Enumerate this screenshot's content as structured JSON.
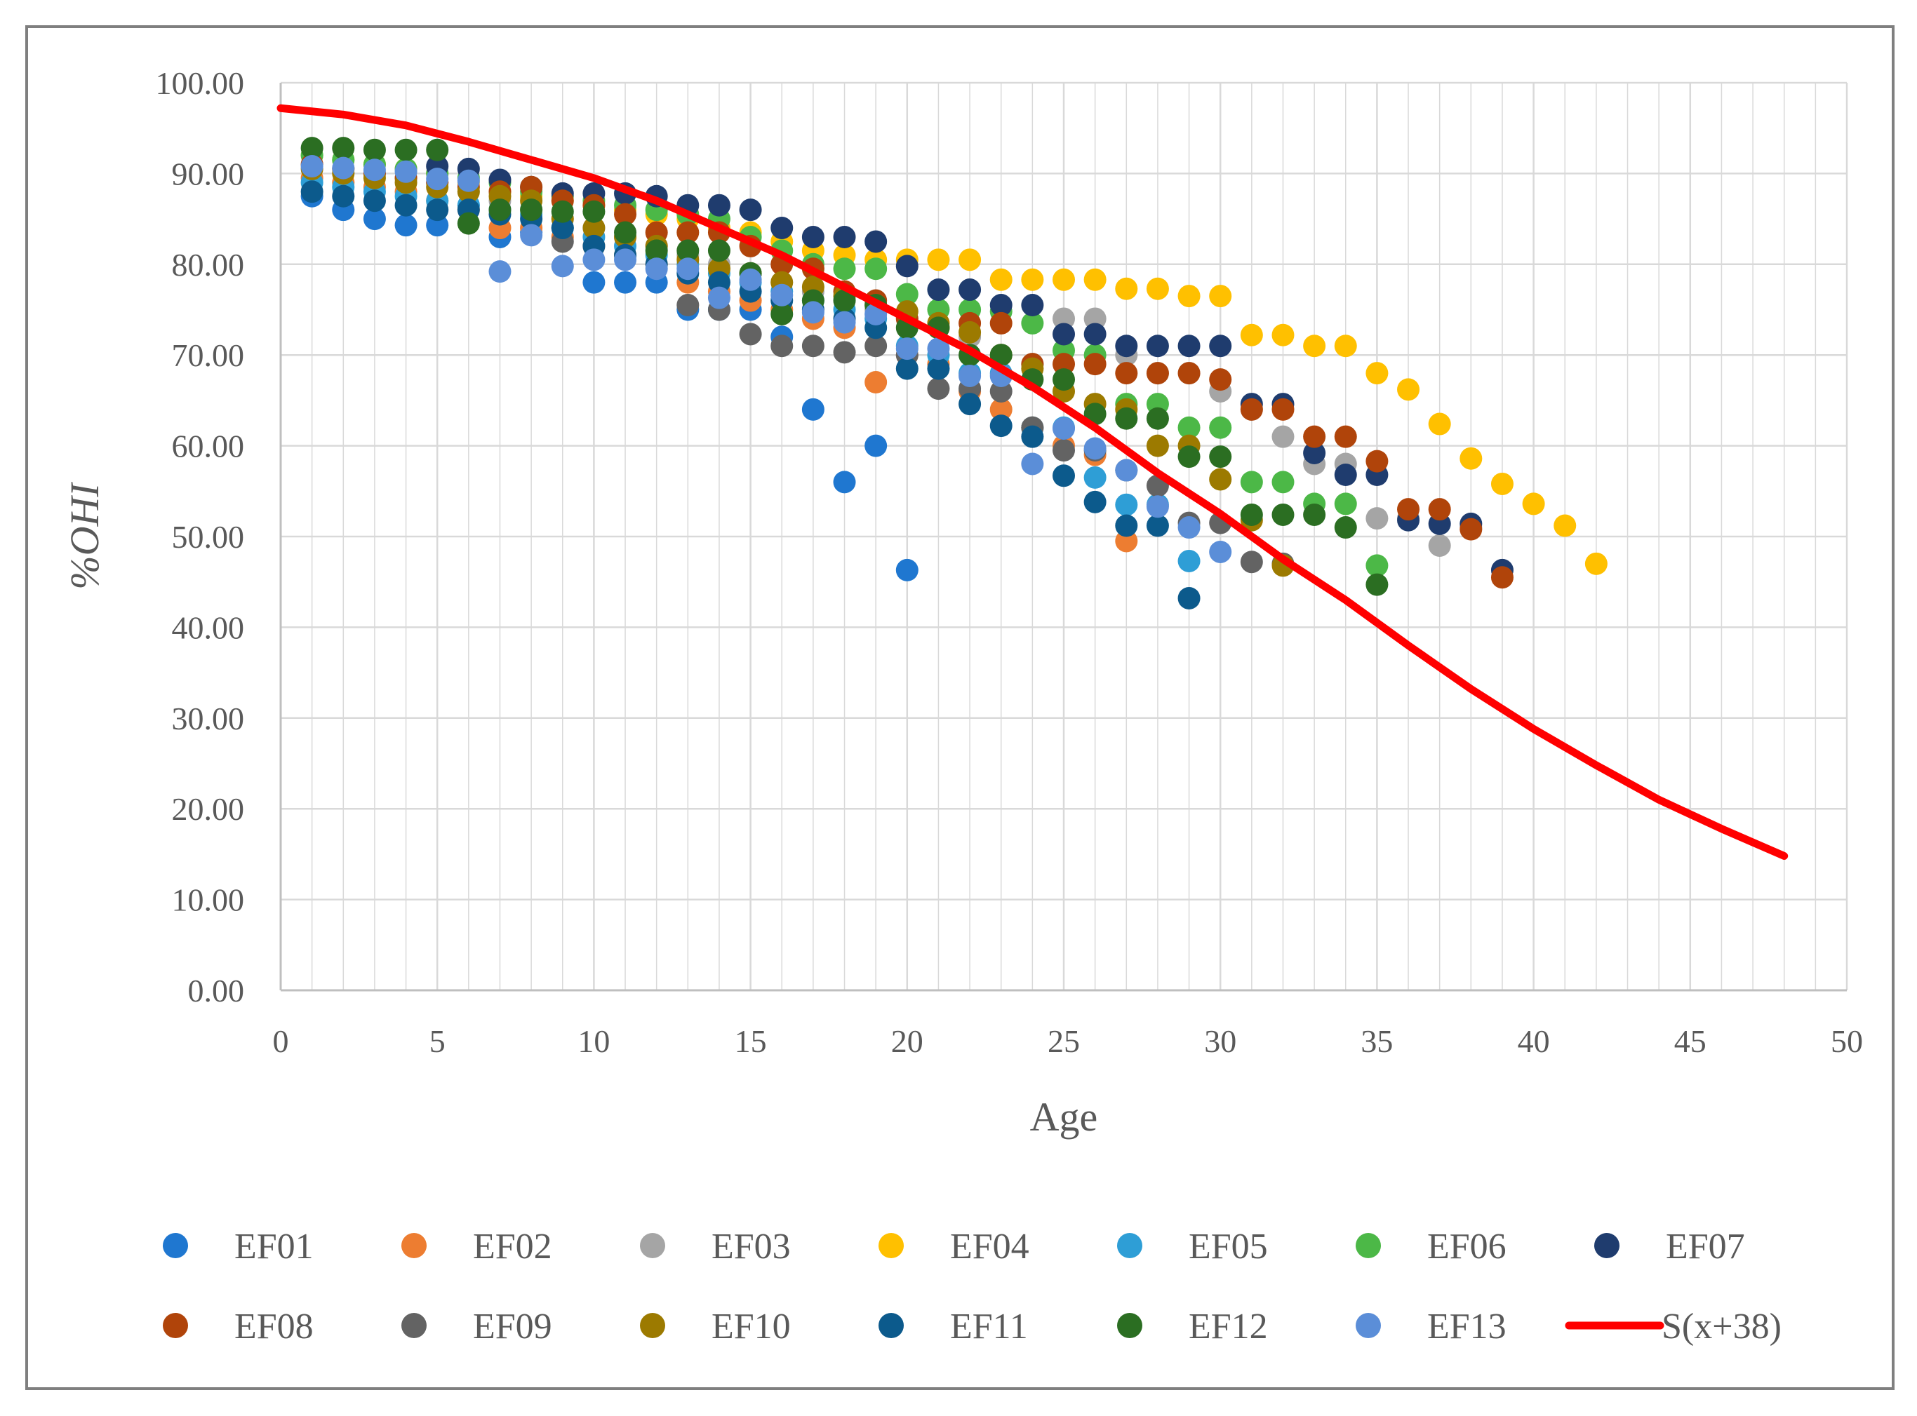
{
  "chart_data": {
    "type": "scatter",
    "title": "",
    "xlabel": "Age",
    "ylabel": "%OHI",
    "xlim": [
      0,
      50
    ],
    "ylim": [
      0,
      100
    ],
    "x_ticks": [
      "0",
      "5",
      "10",
      "15",
      "20",
      "25",
      "30",
      "35",
      "40",
      "45",
      "50"
    ],
    "y_ticks": [
      "0.00",
      "10.00",
      "20.00",
      "30.00",
      "40.00",
      "50.00",
      "60.00",
      "70.00",
      "80.00",
      "90.00",
      "100.00"
    ],
    "grid": true,
    "legend_position": "bottom",
    "series": [
      {
        "name": "EF01",
        "type": "scatter",
        "color": "#1f77d0",
        "x": [
          1,
          2,
          3,
          4,
          5,
          6,
          7,
          8,
          9,
          10,
          11,
          12,
          13,
          14,
          15,
          16,
          17,
          18,
          19,
          20
        ],
        "y": [
          87.5,
          86,
          85,
          84.3,
          84.3,
          86.5,
          83,
          83.5,
          84,
          78,
          78,
          78,
          75,
          75,
          75,
          72,
          64,
          56,
          60,
          46.3
        ]
      },
      {
        "name": "EF02",
        "type": "scatter",
        "color": "#ed7d31",
        "x": [
          1,
          2,
          3,
          4,
          5,
          6,
          7,
          8,
          9,
          10,
          11,
          12,
          13,
          14,
          15,
          16,
          17,
          18,
          19,
          20,
          21,
          22,
          23,
          24,
          25,
          26,
          27
        ],
        "y": [
          89.5,
          89,
          88.5,
          88,
          87,
          86,
          84,
          84,
          83,
          82,
          81,
          80,
          78,
          77,
          76,
          75,
          74,
          73,
          67,
          70,
          69,
          66,
          64,
          62,
          60,
          59,
          49.5
        ]
      },
      {
        "name": "EF03",
        "type": "scatter",
        "color": "#a5a5a5",
        "x": [
          1,
          2,
          3,
          4,
          5,
          6,
          7,
          8,
          9,
          10,
          11,
          12,
          13,
          14,
          15,
          16,
          17,
          18,
          19,
          20,
          21,
          22,
          23,
          24,
          25,
          26,
          27,
          28,
          29,
          30,
          31,
          32,
          33,
          34,
          35,
          36,
          37,
          38
        ],
        "y": [
          91,
          90.5,
          90,
          89.5,
          89,
          88,
          87,
          86,
          85,
          84,
          83,
          82,
          81,
          80,
          79,
          78,
          77,
          76,
          75,
          74,
          73,
          72,
          70,
          69,
          74,
          74,
          70,
          68,
          68,
          66,
          64,
          61,
          58,
          58,
          52,
          52,
          49,
          51
        ]
      },
      {
        "name": "EF04",
        "type": "scatter",
        "color": "#ffc000",
        "x": [
          1,
          2,
          3,
          4,
          5,
          6,
          7,
          8,
          9,
          10,
          11,
          12,
          13,
          14,
          15,
          16,
          17,
          18,
          19,
          20,
          21,
          22,
          23,
          24,
          25,
          26,
          27,
          28,
          29,
          30,
          31,
          32,
          33,
          34,
          35,
          36,
          37,
          38,
          39,
          40,
          41,
          42
        ],
        "y": [
          92,
          91.5,
          91,
          90.5,
          90,
          89,
          88,
          87.5,
          87,
          86.5,
          86,
          85.5,
          85,
          84,
          83.5,
          82.5,
          81.5,
          81,
          80.5,
          80.5,
          80.5,
          80.5,
          78.3,
          78.3,
          78.3,
          78.3,
          77.3,
          77.3,
          76.5,
          76.5,
          72.2,
          72.2,
          71,
          71,
          68,
          66.2,
          62.4,
          58.6,
          55.8,
          53.6,
          51.2,
          47
        ]
      },
      {
        "name": "EF05",
        "type": "scatter",
        "color": "#2e9ed6",
        "x": [
          1,
          2,
          3,
          4,
          5,
          6,
          7,
          8,
          9,
          10,
          11,
          12,
          13,
          14,
          15,
          16,
          17,
          18,
          19,
          20,
          21,
          22,
          23,
          24,
          25,
          26,
          27,
          28,
          29
        ],
        "y": [
          89,
          88.5,
          88,
          87.5,
          87,
          86.5,
          86,
          85.5,
          84,
          83,
          82,
          81,
          80,
          79,
          78,
          77,
          76,
          75,
          74,
          71,
          70,
          68,
          68,
          62,
          62,
          56.5,
          53.5,
          53.5,
          47.3
        ]
      },
      {
        "name": "EF06",
        "type": "scatter",
        "color": "#4cb847",
        "x": [
          1,
          2,
          3,
          4,
          5,
          6,
          7,
          8,
          9,
          10,
          11,
          12,
          13,
          14,
          15,
          16,
          17,
          18,
          19,
          20,
          21,
          22,
          23,
          24,
          25,
          26,
          27,
          28,
          29,
          30,
          31,
          32,
          33,
          34,
          35
        ],
        "y": [
          92,
          91.5,
          91,
          90.5,
          90,
          89.5,
          89,
          88,
          87.5,
          87,
          86.5,
          86,
          85.5,
          85,
          83,
          81.5,
          80,
          79.5,
          79.5,
          76.7,
          75,
          75,
          74.8,
          73.5,
          70.5,
          70,
          64.6,
          64.6,
          62,
          62,
          56,
          56,
          53.6,
          53.6,
          46.8
        ]
      },
      {
        "name": "EF07",
        "type": "scatter",
        "color": "#1f3c6e",
        "x": [
          5,
          6,
          7,
          8,
          9,
          10,
          11,
          12,
          13,
          14,
          15,
          16,
          17,
          18,
          19,
          20,
          21,
          22,
          23,
          24,
          25,
          26,
          27,
          28,
          29,
          30,
          31,
          32,
          33,
          34,
          35,
          36,
          37,
          38,
          39
        ],
        "y": [
          90.8,
          90.5,
          89.3,
          88.5,
          87.8,
          87.8,
          87.8,
          87.5,
          86.5,
          86.5,
          86,
          84,
          83,
          83,
          82.5,
          79.8,
          77.2,
          77.2,
          75.5,
          75.5,
          72.3,
          72.3,
          71,
          71,
          71,
          71,
          64.6,
          64.6,
          59.2,
          56.8,
          56.8,
          51.8,
          51.4,
          51.4,
          46.3
        ]
      },
      {
        "name": "EF08",
        "type": "scatter",
        "color": "#b0440a",
        "x": [
          1,
          2,
          3,
          4,
          5,
          6,
          7,
          8,
          9,
          10,
          11,
          12,
          13,
          14,
          15,
          16,
          17,
          18,
          19,
          20,
          21,
          22,
          23,
          24,
          25,
          26,
          27,
          28,
          29,
          30,
          31,
          32,
          33,
          34,
          35,
          36,
          37,
          38,
          39
        ],
        "y": [
          91,
          90.5,
          90,
          89.5,
          89,
          88.5,
          88,
          88.5,
          87,
          86.5,
          85.5,
          83.5,
          83.5,
          83.5,
          82,
          80,
          79.5,
          77,
          76,
          74,
          73,
          73.5,
          73.5,
          69,
          69,
          69,
          68,
          68,
          68,
          67.3,
          64,
          64,
          61,
          61,
          58.3,
          53,
          53,
          50.8,
          45.5
        ]
      },
      {
        "name": "EF09",
        "type": "scatter",
        "color": "#636363",
        "x": [
          9,
          13,
          14,
          15,
          16,
          17,
          18,
          19,
          20,
          21,
          22,
          23,
          24,
          25,
          26,
          27,
          28,
          29,
          30,
          31,
          32
        ],
        "y": [
          82.5,
          75.5,
          75,
          72.3,
          71,
          71,
          70.3,
          71,
          70,
          66.3,
          66.3,
          66,
          62,
          59.5,
          59.5,
          57.3,
          55.6,
          51.5,
          51.5,
          47.2,
          47
        ]
      },
      {
        "name": "EF10",
        "type": "scatter",
        "color": "#9c7a00",
        "x": [
          1,
          2,
          3,
          4,
          5,
          6,
          7,
          8,
          9,
          10,
          11,
          12,
          13,
          14,
          15,
          16,
          17,
          18,
          19,
          20,
          21,
          22,
          23,
          24,
          25,
          26,
          27,
          28,
          29,
          30,
          31,
          32
        ],
        "y": [
          90.5,
          90,
          89.5,
          89,
          88.5,
          88,
          87.5,
          87,
          85,
          84,
          83,
          82,
          80.5,
          79.5,
          79,
          78,
          77.5,
          76.5,
          75.5,
          74.8,
          73.5,
          72.5,
          70,
          68.5,
          66,
          64.6,
          64,
          60,
          60,
          56.3,
          51.8,
          46.8
        ]
      },
      {
        "name": "EF11",
        "type": "scatter",
        "color": "#0c5a8c",
        "x": [
          1,
          2,
          3,
          4,
          5,
          6,
          7,
          8,
          9,
          10,
          11,
          12,
          13,
          14,
          15,
          16,
          17,
          18,
          19,
          20,
          21,
          22,
          23,
          24,
          25,
          26,
          27,
          28,
          29
        ],
        "y": [
          88,
          87.5,
          87,
          86.5,
          86,
          86,
          85.5,
          85,
          84,
          82,
          81,
          80,
          79,
          78,
          77,
          76,
          75,
          74,
          73,
          68.5,
          68.5,
          64.6,
          62.2,
          61,
          56.7,
          53.8,
          51.2,
          51.2,
          43.2
        ]
      },
      {
        "name": "EF12",
        "type": "scatter",
        "color": "#2b6e22",
        "x": [
          1,
          2,
          3,
          4,
          5,
          6,
          7,
          8,
          9,
          10,
          11,
          12,
          13,
          14,
          15,
          16,
          17,
          18,
          19,
          20,
          21,
          22,
          23,
          24,
          25,
          26,
          27,
          28,
          29,
          30,
          31,
          32,
          33,
          34,
          35
        ],
        "y": [
          92.8,
          92.8,
          92.6,
          92.6,
          92.6,
          84.5,
          86,
          86,
          85.8,
          85.8,
          83.5,
          81.5,
          81.5,
          81.5,
          79,
          74.5,
          76,
          76,
          75.5,
          73,
          73,
          70,
          70,
          67.3,
          67.3,
          63.5,
          63,
          63,
          58.8,
          58.8,
          52.4,
          52.4,
          52.4,
          51,
          44.7
        ]
      },
      {
        "name": "EF13",
        "type": "scatter",
        "color": "#5b8ed8",
        "x": [
          1,
          2,
          3,
          4,
          5,
          6,
          7,
          8,
          9,
          10,
          11,
          12,
          13,
          14,
          15,
          16,
          17,
          18,
          19,
          20,
          21,
          22,
          23,
          24,
          25,
          26,
          27,
          28,
          29,
          30
        ],
        "y": [
          90.8,
          90.6,
          90.4,
          90.2,
          89.4,
          89.2,
          79.2,
          83.2,
          79.8,
          80.5,
          80.5,
          79.5,
          79.5,
          76.3,
          78.3,
          76.6,
          74.7,
          73.6,
          74.5,
          70.7,
          70.7,
          67.7,
          67.7,
          58,
          61.9,
          59.7,
          57.3,
          53.3,
          51,
          48.3
        ]
      },
      {
        "name": "S(x+38)",
        "type": "line",
        "color": "#ff0000",
        "x": [
          0,
          2,
          4,
          6,
          8,
          10,
          12,
          14,
          16,
          18,
          20,
          22,
          24,
          26,
          28,
          30,
          32,
          34,
          36,
          38,
          40,
          42,
          44,
          46,
          48
        ],
        "y": [
          97.2,
          96.5,
          95.3,
          93.5,
          91.5,
          89.5,
          87,
          84,
          81,
          77.5,
          74,
          70.5,
          66.5,
          62,
          57,
          52.5,
          47.5,
          43,
          38,
          33.2,
          28.8,
          24.8,
          21,
          17.8,
          14.8
        ]
      }
    ]
  }
}
